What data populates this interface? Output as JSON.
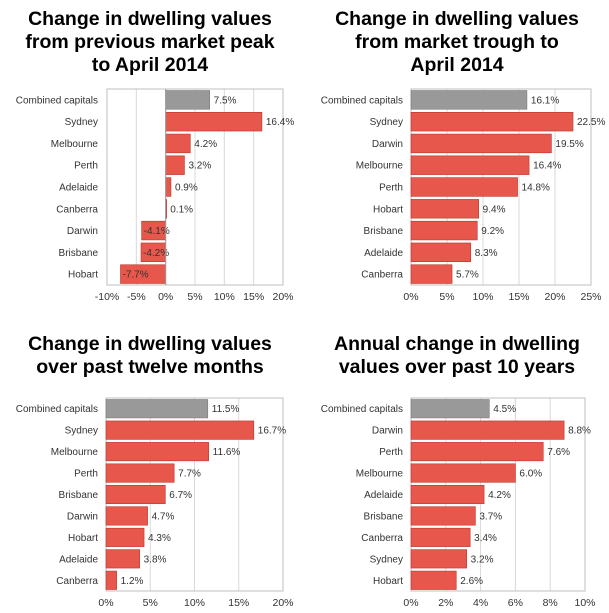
{
  "chart_data": [
    {
      "type": "bar",
      "orientation": "horizontal",
      "title_lines": [
        "Change in dwelling values",
        "from previous market peak",
        "to April 2014"
      ],
      "categories": [
        "Combined capitals",
        "Sydney",
        "Melbourne",
        "Perth",
        "Adelaide",
        "Canberra",
        "Darwin",
        "Brisbane",
        "Hobart"
      ],
      "values": [
        7.5,
        16.4,
        4.2,
        3.2,
        0.9,
        0.1,
        -4.1,
        -4.2,
        -7.7
      ],
      "labels": [
        "7.5%",
        "16.4%",
        "4.2%",
        "3.2%",
        "0.9%",
        "0.1%",
        "-4.1%",
        "-4.2%",
        "-7.7%"
      ],
      "xlim": [
        -10,
        20
      ],
      "ticks": [
        -10,
        -5,
        0,
        5,
        10,
        15,
        20
      ],
      "tick_labels": [
        "-10%",
        "-5%",
        "0%",
        "5%",
        "10%",
        "15%",
        "20%"
      ],
      "highlight": "Combined capitals"
    },
    {
      "type": "bar",
      "orientation": "horizontal",
      "title_lines": [
        "Change in dwelling values",
        "from market trough to",
        "April 2014"
      ],
      "categories": [
        "Combined capitals",
        "Sydney",
        "Darwin",
        "Melbourne",
        "Perth",
        "Hobart",
        "Brisbane",
        "Adelaide",
        "Canberra"
      ],
      "values": [
        16.1,
        22.5,
        19.5,
        16.4,
        14.8,
        9.4,
        9.2,
        8.3,
        5.7
      ],
      "labels": [
        "16.1%",
        "22.5%",
        "19.5%",
        "16.4%",
        "14.8%",
        "9.4%",
        "9.2%",
        "8.3%",
        "5.7%"
      ],
      "xlim": [
        0,
        25
      ],
      "ticks": [
        0,
        5,
        10,
        15,
        20,
        25
      ],
      "tick_labels": [
        "0%",
        "5%",
        "10%",
        "15%",
        "20%",
        "25%"
      ],
      "highlight": "Combined capitals"
    },
    {
      "type": "bar",
      "orientation": "horizontal",
      "title_lines": [
        "Change in dwelling values",
        "over past twelve months"
      ],
      "categories": [
        "Combined capitals",
        "Sydney",
        "Melbourne",
        "Perth",
        "Brisbane",
        "Darwin",
        "Hobart",
        "Adelaide",
        "Canberra"
      ],
      "values": [
        11.5,
        16.7,
        11.6,
        7.7,
        6.7,
        4.7,
        4.3,
        3.8,
        1.2
      ],
      "labels": [
        "11.5%",
        "16.7%",
        "11.6%",
        "7.7%",
        "6.7%",
        "4.7%",
        "4.3%",
        "3.8%",
        "1.2%"
      ],
      "xlim": [
        0,
        20
      ],
      "ticks": [
        0,
        5,
        10,
        15,
        20
      ],
      "tick_labels": [
        "0%",
        "5%",
        "10%",
        "15%",
        "20%"
      ],
      "highlight": "Combined capitals"
    },
    {
      "type": "bar",
      "orientation": "horizontal",
      "title_lines": [
        "Annual change in dwelling",
        "values over past 10 years"
      ],
      "categories": [
        "Combined capitals",
        "Darwin",
        "Perth",
        "Melbourne",
        "Adelaide",
        "Brisbane",
        "Canberra",
        "Sydney",
        "Hobart"
      ],
      "values": [
        4.5,
        8.8,
        7.6,
        6.0,
        4.2,
        3.7,
        3.4,
        3.2,
        2.6
      ],
      "labels": [
        "4.5%",
        "8.8%",
        "7.6%",
        "6.0%",
        "4.2%",
        "3.7%",
        "3.4%",
        "3.2%",
        "2.6%"
      ],
      "xlim": [
        0,
        10
      ],
      "ticks": [
        0,
        2,
        4,
        6,
        8,
        10
      ],
      "tick_labels": [
        "0%",
        "2%",
        "4%",
        "6%",
        "8%",
        "10%"
      ],
      "highlight": "Combined capitals"
    }
  ],
  "colors": {
    "bar": "#e8574b",
    "bar_stroke": "#b8362d",
    "highlight": "#999999",
    "highlight_stroke": "#7a7a7a",
    "grid": "#d9d9d9",
    "axis": "#bfbfbf",
    "text": "#333333"
  }
}
